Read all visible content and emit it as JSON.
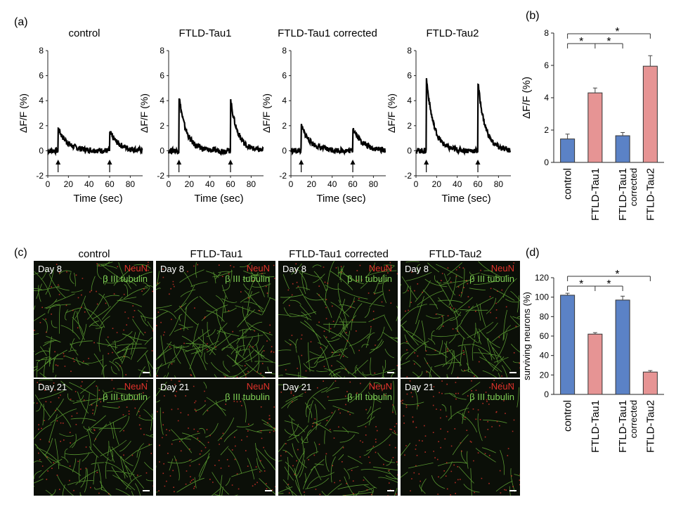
{
  "panel_labels": [
    "(a)",
    "(b)",
    "(c)",
    "(d)"
  ],
  "panel_a": {
    "titles": [
      "control",
      "FTLD-Tau1",
      "FTLD-Tau1 corrected",
      "FTLD-Tau2"
    ],
    "ylabel": "ΔF/F (%)",
    "xlabel": "Time (sec)",
    "yticks": [
      "8",
      "6",
      "4",
      "2",
      "0",
      "-2"
    ],
    "xticks": [
      "0",
      "20",
      "40",
      "60",
      "80"
    ],
    "peaks": [
      [
        1.8,
        1.5
      ],
      [
        4.4,
        4.1
      ],
      [
        2.0,
        1.9
      ],
      [
        5.9,
        5.5
      ]
    ],
    "stim_times": [
      10,
      60
    ]
  },
  "micro": {
    "col_titles": [
      "control",
      "FTLD-Tau1",
      "FTLD-Tau1 corrected",
      "FTLD-Tau2"
    ],
    "days": [
      "Day 8",
      "Day 21"
    ],
    "neun": "NeuN",
    "tubulin": "β III tubulin",
    "green": "#6fbf3c",
    "red": "#d8332a"
  },
  "chart_data": [
    {
      "type": "bar",
      "panel": "(b)",
      "categories": [
        "control",
        "FTLD-Tau1",
        "FTLD-Tau1 corrected",
        "FTLD-Tau2"
      ],
      "category_lines": [
        [
          "control"
        ],
        [
          "FTLD-Tau1"
        ],
        [
          "FTLD-Tau1",
          "corrected"
        ],
        [
          "FTLD-Tau2"
        ]
      ],
      "values": [
        1.45,
        4.3,
        1.65,
        5.95
      ],
      "errors": [
        0.3,
        0.3,
        0.2,
        0.65
      ],
      "ylabel": "ΔF/F (%)",
      "ylim": [
        0,
        8
      ],
      "yticks": [
        "0",
        "2",
        "4",
        "6",
        "8"
      ],
      "colors": [
        "#5b82c6",
        "#e69494",
        "#5b82c6",
        "#e69494"
      ],
      "significance": "*"
    },
    {
      "type": "bar",
      "panel": "(d)",
      "categories": [
        "control",
        "FTLD-Tau1",
        "FTLD-Tau1 corrected",
        "FTLD-Tau2"
      ],
      "category_lines": [
        [
          "control"
        ],
        [
          "FTLD-Tau1"
        ],
        [
          "FTLD-Tau1",
          "corrected"
        ],
        [
          "FTLD-Tau2"
        ]
      ],
      "values": [
        102,
        62,
        97,
        23
      ],
      "errors": [
        2,
        1.5,
        4,
        1.5
      ],
      "ylabel": "surviving neurons (%)",
      "ylim": [
        0,
        120
      ],
      "yticks": [
        "0",
        "20",
        "40",
        "60",
        "80",
        "100",
        "120"
      ],
      "colors": [
        "#5b82c6",
        "#e69494",
        "#5b82c6",
        "#e69494"
      ],
      "significance": "*"
    }
  ]
}
